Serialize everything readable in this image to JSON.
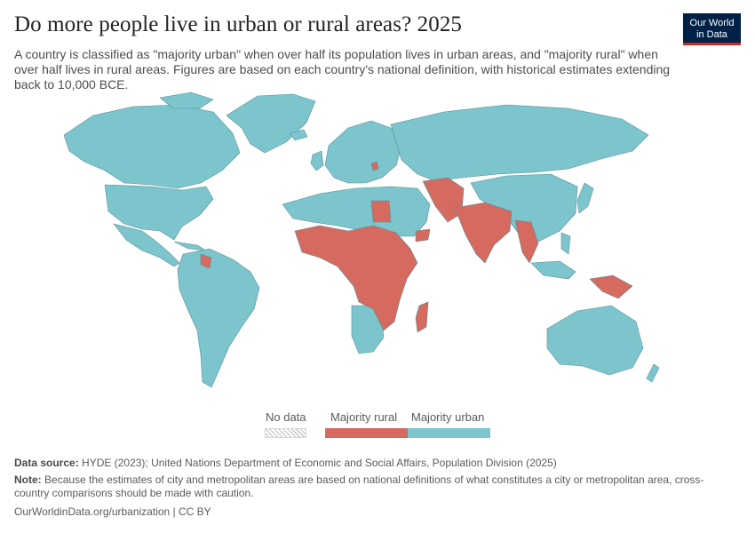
{
  "header": {
    "title": "Do more people live in urban or rural areas? 2025",
    "subtitle": "A country is classified as \"majority urban\" when over half its population lives in urban areas, and \"majority rural\" when over half lives in rural areas. Figures are based on each country's national definition, with historical estimates extending back to 10,000 BCE."
  },
  "logo": {
    "line1": "Our World",
    "line2": "in Data"
  },
  "colors": {
    "urban": "#7cc5cd",
    "rural": "#d66a5f",
    "border": "#5b8f96",
    "ocean": "#ffffff",
    "no_data": "#e5e5e5"
  },
  "legend": {
    "no_data_label": "No data",
    "rural_label": "Majority rural",
    "urban_label": "Majority urban"
  },
  "footer": {
    "source_label": "Data source:",
    "source_text": "HYDE (2023); United Nations Department of Economic and Social Affairs, Population Division (2025)",
    "note_label": "Note:",
    "note_text": "Because the estimates of city and metropolitan areas are based on national definitions of what constitutes a city or metropolitan area, cross-country comparisons should be made with caution.",
    "url_text": "OurWorldinData.org/urbanization | CC BY"
  }
}
